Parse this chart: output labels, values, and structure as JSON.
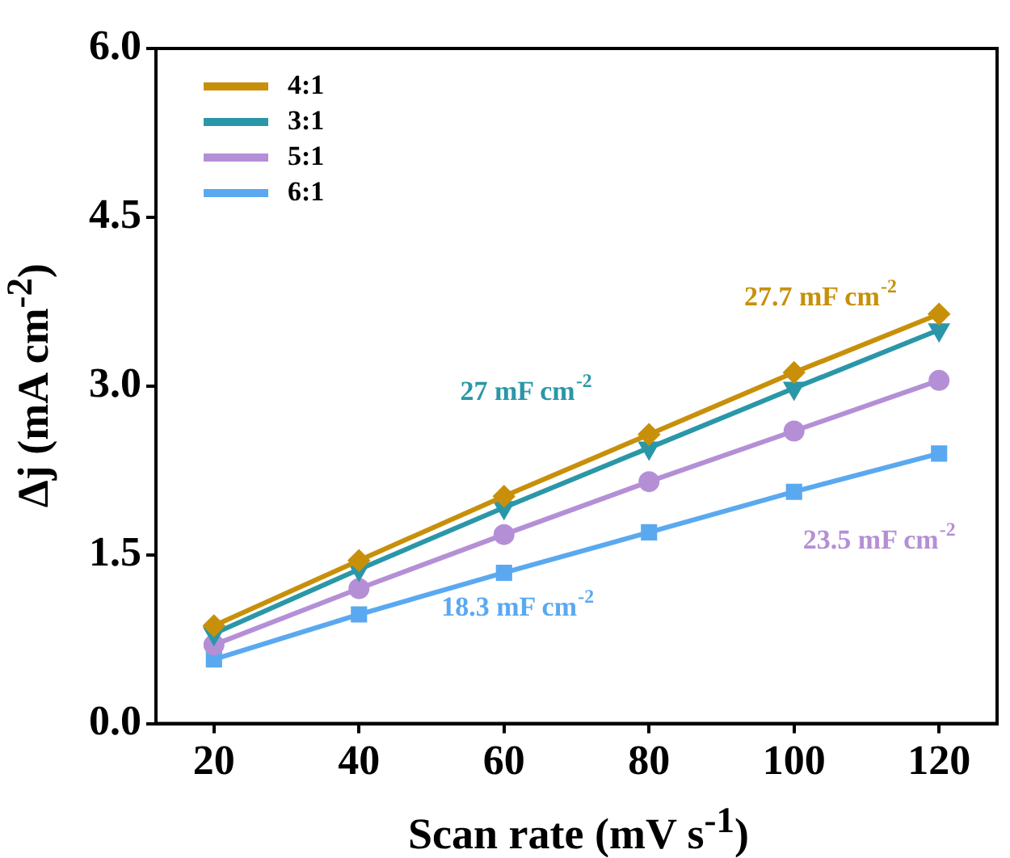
{
  "chart_data": {
    "type": "line",
    "xlabel": "Scan rate (mV s$^{-1}$)",
    "ylabel": "Δj (mA cm$^{-2}$)",
    "x": [
      20,
      40,
      60,
      80,
      100,
      120
    ],
    "series": [
      {
        "name": "4:1",
        "color": "#c8900a",
        "marker": "diamond",
        "values": [
          0.87,
          1.45,
          2.02,
          2.57,
          3.12,
          3.64
        ]
      },
      {
        "name": "3:1",
        "color": "#2a97a8",
        "marker": "triangle",
        "values": [
          0.8,
          1.37,
          1.92,
          2.45,
          2.98,
          3.5
        ]
      },
      {
        "name": "5:1",
        "color": "#b58fd6",
        "marker": "circle",
        "values": [
          0.7,
          1.2,
          1.68,
          2.15,
          2.6,
          3.05
        ]
      },
      {
        "name": "6:1",
        "color": "#5aa9f0",
        "marker": "square",
        "values": [
          0.57,
          0.97,
          1.34,
          1.7,
          2.06,
          2.4
        ]
      }
    ],
    "annotations": [
      "27.7 mF cm$^{-2}$",
      "27 mF cm$^{-2}$",
      "23.5 mF cm$^{-2}$",
      "18.3 mF cm$^{-2}$"
    ],
    "xlim": [
      12,
      128
    ],
    "xticks": [
      20,
      40,
      60,
      80,
      100,
      120
    ],
    "ylim": [
      0,
      6
    ],
    "yticks": [
      {
        "value": 0,
        "label": "0.0"
      },
      {
        "value": 1.5,
        "label": "1.5"
      },
      {
        "value": 3,
        "label": "3.0"
      },
      {
        "value": 4.5,
        "label": "4.5"
      },
      {
        "value": 6,
        "label": "6.0"
      }
    ],
    "grid": false,
    "legend": "top left",
    "line_style": "solid"
  }
}
